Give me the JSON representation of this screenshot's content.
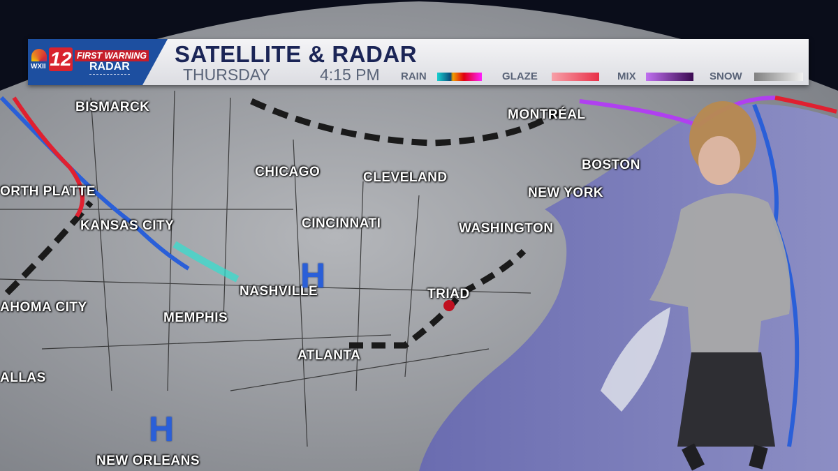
{
  "header": {
    "station_call": "WXII",
    "station_number": "12",
    "brand_top": "FIRST WARNING",
    "brand_bottom": "RADAR",
    "title": "SATELLITE & RADAR",
    "day": "THURSDAY",
    "time": "4:15 PM"
  },
  "legend": [
    {
      "label": "RAIN",
      "colors": [
        "#18d0d0",
        "#0a4a7a",
        "#f0a000",
        "#e00010",
        "#ff20ff"
      ]
    },
    {
      "label": "GLAZE",
      "colors": [
        "#f7a0a8",
        "#e83048"
      ]
    },
    {
      "label": "MIX",
      "colors": [
        "#c070f0",
        "#3a0a50"
      ]
    },
    {
      "label": "SNOW",
      "colors": [
        "#808080",
        "#f0f0f0"
      ]
    }
  ],
  "cities": [
    "BISMARCK",
    "CHICAGO",
    "CLEVELAND",
    "MONTRÉAL",
    "BOSTON",
    "NEW YORK",
    "ORTH PLATTE",
    "KANSAS CITY",
    "CINCINNATI",
    "WASHINGTON",
    "NASHVILLE",
    "TRIAD",
    "AHOMA CITY",
    "MEMPHIS",
    "ATLANTA",
    "ALLAS",
    "NEW ORLEANS"
  ],
  "pressure_centers": [
    "H",
    "H"
  ],
  "colors": {
    "land": "#9a9ca2",
    "ocean": "#5a5ca8",
    "cold_front": "#2a5fd8",
    "warm_front": "#e02030",
    "trough": "#222222"
  }
}
